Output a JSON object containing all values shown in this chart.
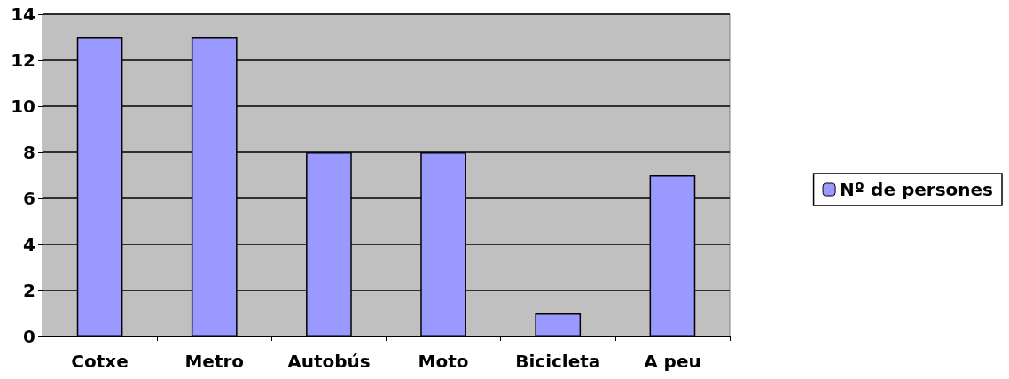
{
  "chart_data": {
    "type": "bar",
    "categories": [
      "Cotxe",
      "Metro",
      "Autobús",
      "Moto",
      "Bicicleta",
      "A peu"
    ],
    "series": [
      {
        "name": "Nº de persones",
        "color": "#9999ff",
        "values": [
          13,
          13,
          8,
          8,
          1,
          7
        ]
      }
    ],
    "ylim": [
      0,
      14
    ],
    "yticks": [
      0,
      2,
      4,
      6,
      8,
      10,
      12,
      14
    ],
    "grid": "y",
    "legend": "right"
  }
}
